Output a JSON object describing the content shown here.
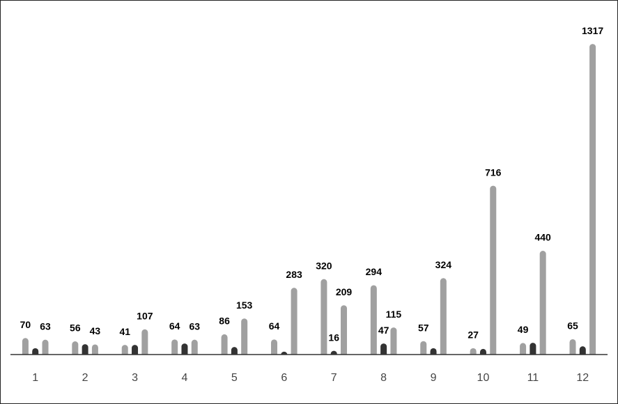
{
  "chart_data": {
    "type": "bar",
    "categories": [
      "1",
      "2",
      "3",
      "4",
      "5",
      "6",
      "7",
      "8",
      "9",
      "10",
      "11",
      "12"
    ],
    "series": [
      {
        "color": "#a0a0a0",
        "values": [
          70,
          56,
          41,
          64,
          86,
          64,
          320,
          294,
          57,
          27,
          49,
          65
        ],
        "data_labels": true
      },
      {
        "color": "#333333",
        "values": [
          27,
          44,
          41,
          47,
          32,
          12,
          16,
          47,
          27,
          24,
          50,
          35
        ],
        "value_labels": [
          null,
          null,
          null,
          null,
          null,
          null,
          "16",
          "47",
          null,
          null,
          null,
          null
        ]
      },
      {
        "color": "#a0a0a0",
        "values": [
          63,
          43,
          107,
          63,
          153,
          283,
          209,
          115,
          324,
          716,
          440,
          1317
        ],
        "data_labels": true
      }
    ],
    "ylim": [
      0,
      1400
    ]
  }
}
